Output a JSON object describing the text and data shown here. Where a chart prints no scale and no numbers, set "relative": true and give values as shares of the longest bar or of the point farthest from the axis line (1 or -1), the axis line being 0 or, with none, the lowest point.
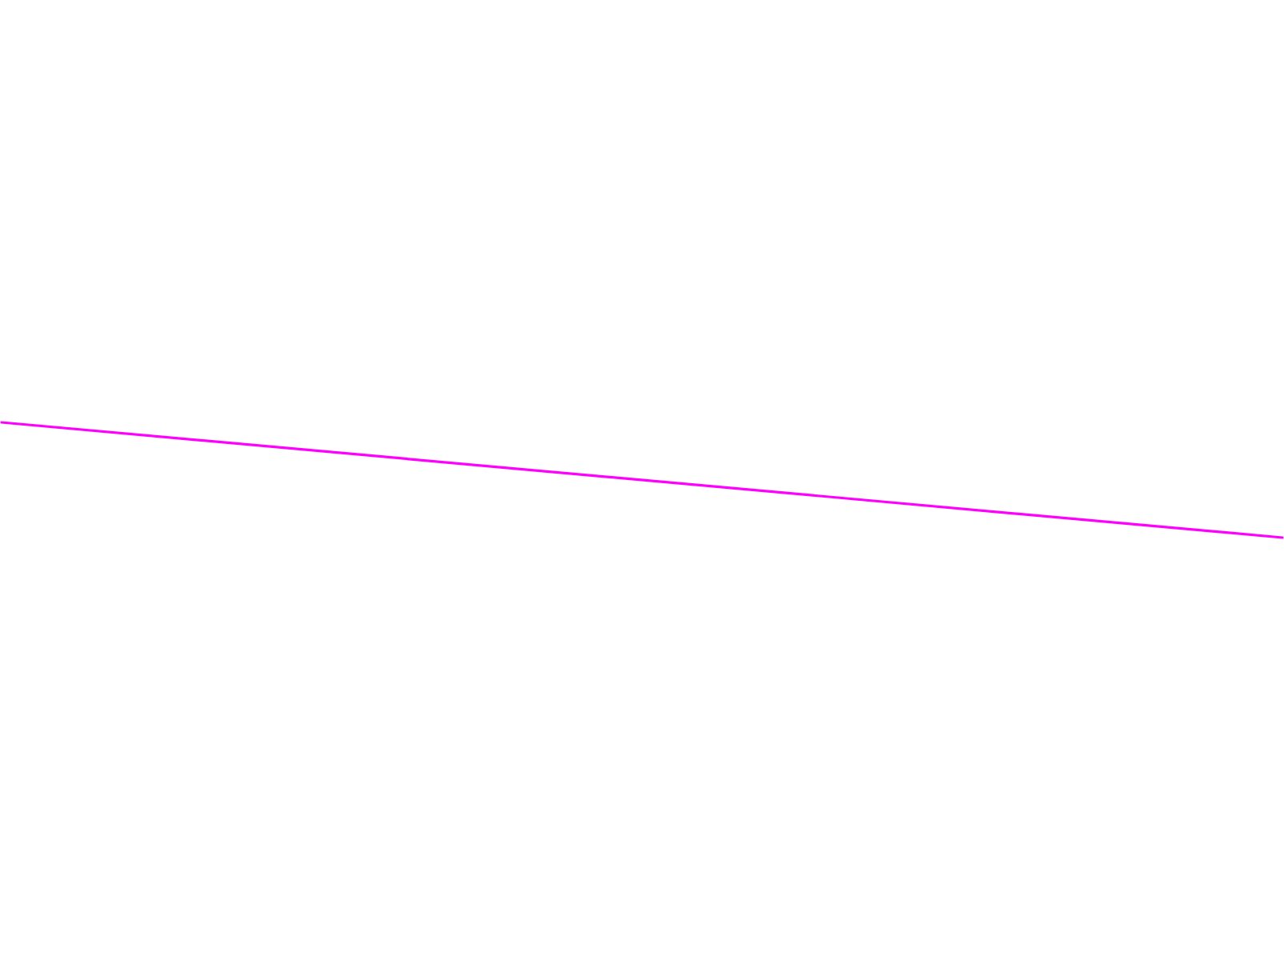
{
  "chart_data": {
    "type": "line",
    "relative": true,
    "categories": [
      null,
      null
    ],
    "series": [
      {
        "color": "#ff00ff",
        "values": [
          1,
          0
        ]
      }
    ]
  }
}
